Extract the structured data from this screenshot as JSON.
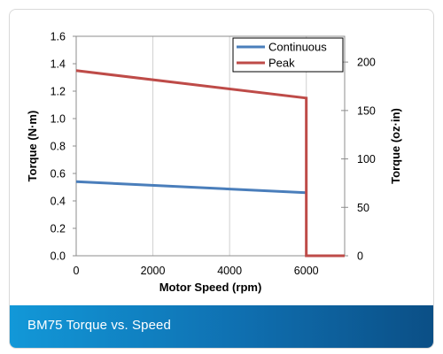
{
  "caption": "BM75 Torque vs. Speed",
  "chart_data": {
    "type": "line",
    "xlabel": "Motor Speed (rpm)",
    "ylabel": "Torque (N·m)",
    "y2label": "Torque (oz·in)",
    "xlim": [
      0,
      7000
    ],
    "ylim": [
      0,
      1.6
    ],
    "y2lim": [
      0,
      226.6
    ],
    "x_ticks": [
      "0",
      "2000",
      "4000",
      "6000"
    ],
    "x_tick_values": [
      0,
      2000,
      4000,
      6000
    ],
    "y_ticks": [
      "0.0",
      "0.2",
      "0.4",
      "0.6",
      "0.8",
      "1.0",
      "1.2",
      "1.4",
      "1.6"
    ],
    "y_tick_values": [
      0,
      0.2,
      0.4,
      0.6,
      0.8,
      1.0,
      1.2,
      1.4,
      1.6
    ],
    "y2_ticks": [
      "0",
      "50",
      "100",
      "150",
      "200"
    ],
    "y2_tick_values": [
      0,
      50,
      100,
      150,
      200
    ],
    "grid": "vertical",
    "legend_position": "top-right",
    "series": [
      {
        "name": "Continuous",
        "color": "#4a7ebb",
        "x": [
          0,
          6000
        ],
        "y": [
          0.54,
          0.46
        ]
      },
      {
        "name": "Peak",
        "color": "#be4b48",
        "x": [
          0,
          6000,
          6000,
          7000
        ],
        "y": [
          1.35,
          1.15,
          0,
          0
        ]
      }
    ]
  }
}
